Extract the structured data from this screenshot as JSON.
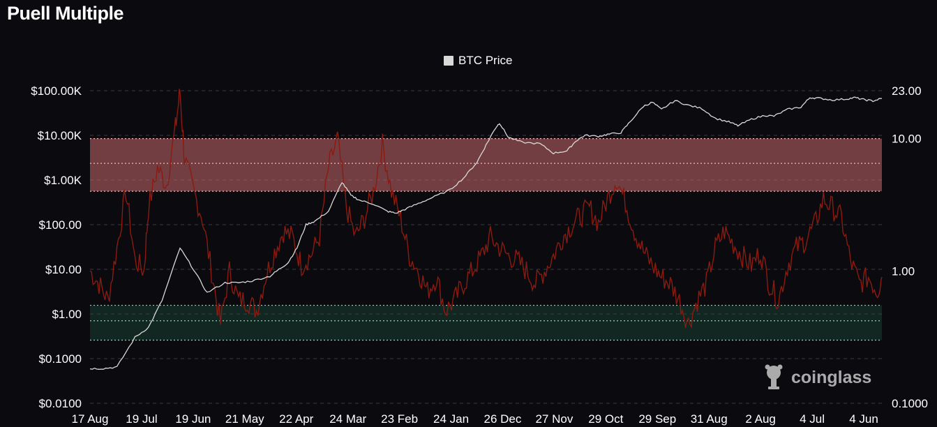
{
  "title": "Puell Multiple",
  "legend": {
    "series_label": "BTC Price"
  },
  "watermark": "coinglass",
  "colors": {
    "background": "#0b0b0f",
    "price_line": "#d9d9d9",
    "puell_line": "#8b1a10",
    "upper_band": "#c86a6e",
    "lower_band": "#1f5c45",
    "band_line_upper": "#ffb3b3",
    "band_line_lower": "#7ee0b0"
  },
  "chart_data": {
    "type": "line",
    "title": "Puell Multiple",
    "x_tick_labels": [
      "17 Aug",
      "19 Jul",
      "19 Jun",
      "21 May",
      "22 Apr",
      "24 Mar",
      "23 Feb",
      "24 Jan",
      "26 Dec",
      "27 Nov",
      "29 Oct",
      "29 Sep",
      "31 Aug",
      "2 Aug",
      "4 Jul",
      "4 Jun"
    ],
    "y_left": {
      "scale": "log",
      "range": [
        0.01,
        100000
      ],
      "tick_values": [
        100000,
        10000,
        1000,
        100,
        10,
        1,
        0.1,
        0.01
      ],
      "tick_labels": [
        "$100.00K",
        "$10.00K",
        "$1.00K",
        "$100.00",
        "$10.00",
        "$1.00",
        "$0.1000",
        "$0.0100"
      ]
    },
    "y_right": {
      "scale": "log",
      "range": [
        0.1,
        23
      ],
      "tick_values": [
        23,
        10,
        1,
        0.1
      ],
      "tick_labels": [
        "23.00",
        "10.00",
        "1.00",
        "0.1000"
      ]
    },
    "bands": {
      "upper": {
        "from": 4.0,
        "to": 10.0,
        "mid_line": 6.5
      },
      "lower": {
        "from": 0.3,
        "to": 0.55,
        "mid_line": 0.42
      }
    },
    "grid": true,
    "legend_position": "top-center",
    "series": [
      {
        "name": "BTC Price",
        "axis": "left",
        "points": [
          [
            0,
            0.06
          ],
          [
            0.3,
            0.06
          ],
          [
            0.6,
            0.065
          ],
          [
            1,
            0.3
          ],
          [
            1.3,
            0.5
          ],
          [
            1.6,
            2
          ],
          [
            2,
            30
          ],
          [
            2.3,
            10
          ],
          [
            2.6,
            3
          ],
          [
            3,
            5
          ],
          [
            3.3,
            5
          ],
          [
            3.6,
            5.5
          ],
          [
            4,
            7
          ],
          [
            4.2,
            10
          ],
          [
            4.4,
            14
          ],
          [
            4.6,
            30
          ],
          [
            4.8,
            100
          ],
          [
            5,
            120
          ],
          [
            5.3,
            200
          ],
          [
            5.6,
            900
          ],
          [
            5.8,
            450
          ],
          [
            6,
            350
          ],
          [
            6.3,
            290
          ],
          [
            6.6,
            200
          ],
          [
            6.8,
            180
          ],
          [
            7,
            220
          ],
          [
            7.3,
            300
          ],
          [
            7.6,
            400
          ],
          [
            8,
            600
          ],
          [
            8.3,
            1100
          ],
          [
            8.6,
            2500
          ],
          [
            8.8,
            6000
          ],
          [
            9,
            14000
          ],
          [
            9.1,
            19000
          ],
          [
            9.3,
            9000
          ],
          [
            9.6,
            7000
          ],
          [
            10,
            6500
          ],
          [
            10.3,
            4000
          ],
          [
            10.6,
            4500
          ],
          [
            10.8,
            7500
          ],
          [
            11,
            10000
          ],
          [
            11.3,
            9500
          ],
          [
            11.5,
            10500
          ],
          [
            11.8,
            11500
          ],
          [
            12,
            20000
          ],
          [
            12.3,
            45000
          ],
          [
            12.5,
            55000
          ],
          [
            12.7,
            38000
          ],
          [
            13,
            60000
          ],
          [
            13.3,
            47000
          ],
          [
            13.6,
            40000
          ],
          [
            13.9,
            24000
          ],
          [
            14.2,
            20000
          ],
          [
            14.4,
            16500
          ],
          [
            14.7,
            23000
          ],
          [
            15,
            28000
          ],
          [
            15.2,
            27000
          ],
          [
            15.5,
            38000
          ],
          [
            15.8,
            43000
          ],
          [
            16,
            70000
          ],
          [
            16.2,
            68000
          ],
          [
            16.5,
            62000
          ],
          [
            16.8,
            65000
          ],
          [
            17,
            70000
          ],
          [
            17.2,
            63000
          ],
          [
            17.4,
            59000
          ],
          [
            17.6,
            67000
          ]
        ]
      },
      {
        "name": "Puell Multiple",
        "axis": "right",
        "points": [
          [
            0,
            1.0
          ],
          [
            0.2,
            0.8
          ],
          [
            0.4,
            0.6
          ],
          [
            0.6,
            1.5
          ],
          [
            0.8,
            4.0
          ],
          [
            1.0,
            1.2
          ],
          [
            1.2,
            1.0
          ],
          [
            1.3,
            3.0
          ],
          [
            1.5,
            6.0
          ],
          [
            1.7,
            4.5
          ],
          [
            1.9,
            12
          ],
          [
            2.0,
            23
          ],
          [
            2.1,
            7.0
          ],
          [
            2.3,
            4.0
          ],
          [
            2.5,
            2.5
          ],
          [
            2.7,
            1.0
          ],
          [
            2.9,
            0.4
          ],
          [
            3.1,
            1.0
          ],
          [
            3.3,
            0.6
          ],
          [
            3.5,
            0.6
          ],
          [
            3.7,
            0.5
          ],
          [
            3.9,
            0.9
          ],
          [
            4.1,
            1.4
          ],
          [
            4.3,
            2.0
          ],
          [
            4.5,
            1.8
          ],
          [
            4.7,
            1.1
          ],
          [
            4.9,
            1.3
          ],
          [
            5.1,
            1.8
          ],
          [
            5.3,
            6.0
          ],
          [
            5.5,
            10
          ],
          [
            5.7,
            3.0
          ],
          [
            5.9,
            1.8
          ],
          [
            6.1,
            2.5
          ],
          [
            6.3,
            4.0
          ],
          [
            6.5,
            9.0
          ],
          [
            6.7,
            4.0
          ],
          [
            6.9,
            2.5
          ],
          [
            7.1,
            1.3
          ],
          [
            7.3,
            1.0
          ],
          [
            7.5,
            0.7
          ],
          [
            7.7,
            0.9
          ],
          [
            7.9,
            0.5
          ],
          [
            8.1,
            0.6
          ],
          [
            8.3,
            0.8
          ],
          [
            8.5,
            1.0
          ],
          [
            8.7,
            1.3
          ],
          [
            8.9,
            1.8
          ],
          [
            9.1,
            1.5
          ],
          [
            9.3,
            1.3
          ],
          [
            9.5,
            1.2
          ],
          [
            9.7,
            1.0
          ],
          [
            9.9,
            0.8
          ],
          [
            10.1,
            1.0
          ],
          [
            10.3,
            1.3
          ],
          [
            10.5,
            1.8
          ],
          [
            10.7,
            2.2
          ],
          [
            10.9,
            2.6
          ],
          [
            11.1,
            3.0
          ],
          [
            11.3,
            2.3
          ],
          [
            11.5,
            3.5
          ],
          [
            11.7,
            5.0
          ],
          [
            11.9,
            3.3
          ],
          [
            12.1,
            2.0
          ],
          [
            12.3,
            1.4
          ],
          [
            12.5,
            1.1
          ],
          [
            12.7,
            0.9
          ],
          [
            12.9,
            0.8
          ],
          [
            13.1,
            0.6
          ],
          [
            13.3,
            0.4
          ],
          [
            13.5,
            0.6
          ],
          [
            13.7,
            0.8
          ],
          [
            13.9,
            1.5
          ],
          [
            14.1,
            2.0
          ],
          [
            14.3,
            1.6
          ],
          [
            14.5,
            1.3
          ],
          [
            14.7,
            1.1
          ],
          [
            14.9,
            1.4
          ],
          [
            15.1,
            0.8
          ],
          [
            15.3,
            0.6
          ],
          [
            15.5,
            1.1
          ],
          [
            15.7,
            1.5
          ],
          [
            15.9,
            1.7
          ],
          [
            16.1,
            2.2
          ],
          [
            16.3,
            3.5
          ],
          [
            16.5,
            3.0
          ],
          [
            16.7,
            2.5
          ],
          [
            16.9,
            1.2
          ],
          [
            17.1,
            0.8
          ],
          [
            17.3,
            0.9
          ],
          [
            17.5,
            0.7
          ],
          [
            17.6,
            0.9
          ]
        ]
      }
    ]
  }
}
